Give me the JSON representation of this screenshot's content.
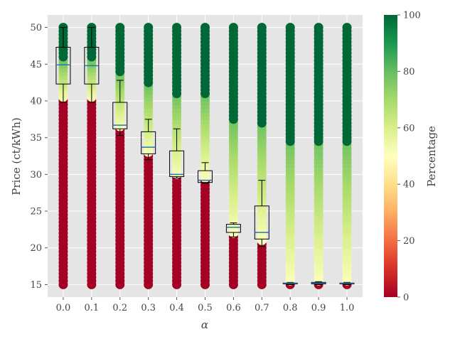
{
  "chart_data": {
    "type": "box-strip",
    "title": "",
    "xlabel": "α",
    "ylabel": "Price (ct/kWh)",
    "colorbar_label": "Percentage",
    "x": [
      0.0,
      0.1,
      0.2,
      0.3,
      0.4,
      0.5,
      0.6,
      0.7,
      0.8,
      0.9,
      1.0
    ],
    "x_tick_labels": [
      "0.0",
      "0.1",
      "0.2",
      "0.3",
      "0.4",
      "0.5",
      "0.6",
      "0.7",
      "0.8",
      "0.9",
      "1.0"
    ],
    "y_ticks": [
      15,
      20,
      25,
      30,
      35,
      40,
      45,
      50
    ],
    "ylim": [
      13.3,
      51.7
    ],
    "xlim": [
      -0.055,
      1.055
    ],
    "colorbar_ticks": [
      0,
      20,
      40,
      60,
      80,
      100
    ],
    "colorbar_range": [
      0,
      100
    ],
    "colormap": [
      "#a50026",
      "#d73027",
      "#f46d43",
      "#fdae61",
      "#fee08b",
      "#ffffbf",
      "#d9ef8b",
      "#a6d96a",
      "#66bd63",
      "#1a9850",
      "#006837"
    ],
    "grid": true,
    "colors": {
      "plot_background": "#e5e5e5",
      "grid": "#ffffff",
      "median": "#1f77b4",
      "box_edge": "#000000"
    },
    "threshold_price": [
      40,
      40,
      36,
      32.5,
      29.5,
      29,
      21.5,
      20.5,
      15,
      15,
      15
    ],
    "boxes": [
      {
        "x": 0.0,
        "whisker_low": 39.8,
        "q1": 42.3,
        "median": 44.9,
        "q3": 47.3,
        "whisker_high": 50
      },
      {
        "x": 0.1,
        "whisker_low": 39.8,
        "q1": 42.3,
        "median": 44.8,
        "q3": 47.3,
        "whisker_high": 50
      },
      {
        "x": 0.2,
        "whisker_low": 35.3,
        "q1": 36.2,
        "median": 36.7,
        "q3": 39.8,
        "whisker_high": 42.8
      },
      {
        "x": 0.3,
        "whisker_low": 32.0,
        "q1": 32.8,
        "median": 33.7,
        "q3": 35.8,
        "whisker_high": 37.5
      },
      {
        "x": 0.4,
        "whisker_low": 29.5,
        "q1": 29.7,
        "median": 30.0,
        "q3": 33.2,
        "whisker_high": 36.2
      },
      {
        "x": 0.5,
        "whisker_low": 28.8,
        "q1": 28.9,
        "median": 29.2,
        "q3": 30.5,
        "whisker_high": 31.6
      },
      {
        "x": 0.6,
        "whisker_low": 21.5,
        "q1": 22.1,
        "median": 22.8,
        "q3": 23.2,
        "whisker_high": 23.4
      },
      {
        "x": 0.7,
        "whisker_low": 20.2,
        "q1": 21.2,
        "median": 22.1,
        "q3": 25.7,
        "whisker_high": 29.2
      },
      {
        "x": 0.8,
        "whisker_low": 15.0,
        "q1": 15.1,
        "median": 15.2,
        "q3": 15.2,
        "whisker_high": 15.3
      },
      {
        "x": 0.9,
        "whisker_low": 15.0,
        "q1": 15.1,
        "median": 15.2,
        "q3": 15.3,
        "whisker_high": 15.4
      },
      {
        "x": 1.0,
        "whisker_low": 15.0,
        "q1": 15.1,
        "median": 15.2,
        "q3": 15.2,
        "whisker_high": 15.3
      }
    ]
  }
}
